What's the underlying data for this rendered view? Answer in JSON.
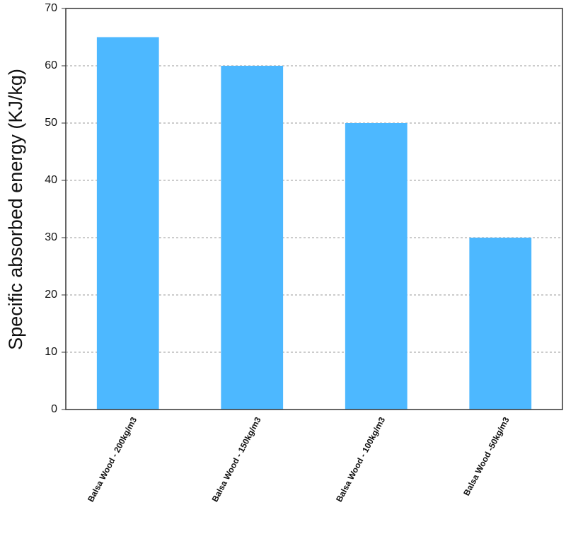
{
  "chart_data": {
    "type": "bar",
    "y_label": "Specific absorbed energy (KJ/kg)",
    "categories": [
      "Balsa Wood - 200kg/m3",
      "Balsa Wood - 150kg/m3",
      "Balsa Wood - 100kg/m3",
      "Balsa Wood -50kg/m3"
    ],
    "values": [
      65,
      60,
      50,
      30
    ],
    "color": "#4db8ff",
    "ylim": [
      0,
      70
    ],
    "yticks": [
      0,
      10,
      20,
      30,
      40,
      50,
      60,
      70
    ],
    "grid": true
  }
}
